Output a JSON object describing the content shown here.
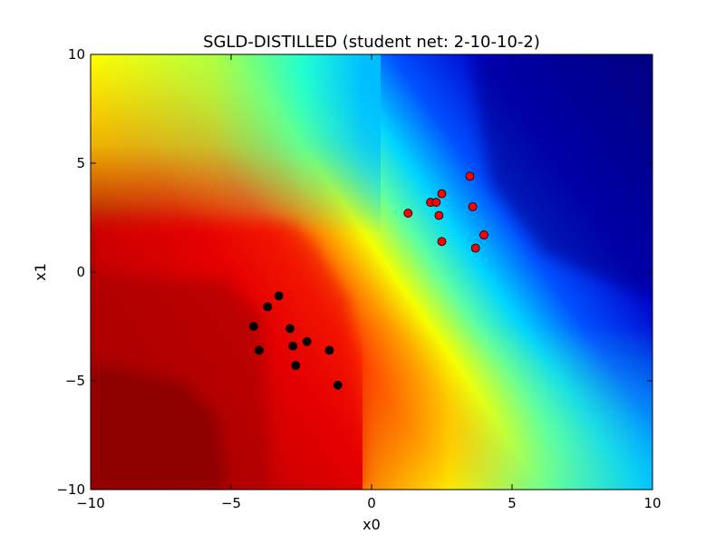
{
  "chart_data": {
    "type": "scatter",
    "title": "SGLD-DISTILLED (student net: 2-10-10-2)",
    "xlabel": "x0",
    "ylabel": "x1",
    "xlim": [
      -10,
      10
    ],
    "ylim": [
      -10,
      10
    ],
    "x_ticks": [
      -10,
      -5,
      0,
      5,
      10
    ],
    "y_ticks": [
      -10,
      -5,
      0,
      5,
      10
    ],
    "x_tick_labels": [
      "−10",
      "−5",
      "0",
      "5",
      "10"
    ],
    "y_tick_labels": [
      "−10",
      "−5",
      "0",
      "5",
      "10"
    ],
    "grid": false,
    "legend": "none",
    "background": "filled contour of predicted class probability (jet colormap): red toward lower-left, blue toward upper-right, diagonal decision boundary",
    "series": [
      {
        "color": "#ff0000",
        "points": [
          [
            3.5,
            4.4
          ],
          [
            2.5,
            3.6
          ],
          [
            2.1,
            3.2
          ],
          [
            2.3,
            3.2
          ],
          [
            1.3,
            2.7
          ],
          [
            2.4,
            2.6
          ],
          [
            3.6,
            3.0
          ],
          [
            2.5,
            1.4
          ],
          [
            4.0,
            1.7
          ],
          [
            3.7,
            1.1
          ]
        ]
      },
      {
        "color": "#000000",
        "points": [
          [
            -3.3,
            -1.1
          ],
          [
            -3.7,
            -1.6
          ],
          [
            -4.2,
            -2.5
          ],
          [
            -2.9,
            -2.6
          ],
          [
            -2.3,
            -3.2
          ],
          [
            -2.8,
            -3.4
          ],
          [
            -4.0,
            -3.6
          ],
          [
            -1.5,
            -3.6
          ],
          [
            -2.7,
            -4.3
          ],
          [
            -1.2,
            -5.2
          ]
        ]
      }
    ]
  }
}
